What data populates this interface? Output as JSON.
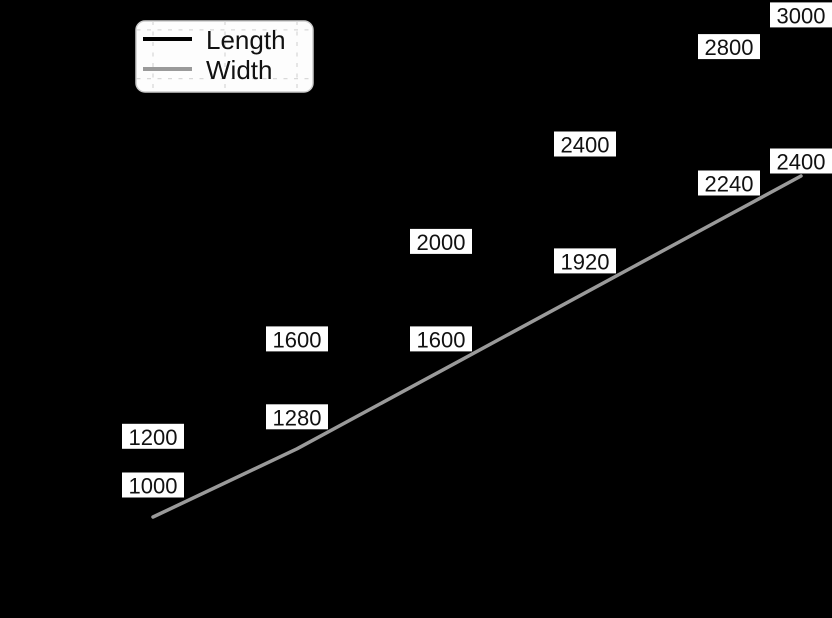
{
  "page": {
    "background": "#000000"
  },
  "chart_data": {
    "type": "line",
    "title": "",
    "xlabel": "",
    "ylabel": "",
    "x_relative": [
      0,
      2,
      4,
      6,
      8,
      9
    ],
    "series": [
      {
        "name": "Length",
        "color": "#000000",
        "values": [
          1200,
          1600,
          2000,
          2400,
          2800,
          3000
        ]
      },
      {
        "name": "Width",
        "color": "#9a9a9a",
        "values": [
          1000,
          1280,
          1600,
          1920,
          2240,
          2400
        ]
      }
    ],
    "data_labels": {
      "shown": true,
      "text_color": "#111111",
      "background": "#ffffff",
      "values": [
        [
          "1200",
          "1600",
          "2000",
          "2400",
          "2800",
          "3000"
        ],
        [
          "1000",
          "1280",
          "1600",
          "1920",
          "2240",
          "2400"
        ]
      ]
    },
    "legend": {
      "position": "top-left",
      "labels": [
        "Length",
        "Width"
      ],
      "background": "#fdfdfd",
      "border_color": "#cccccc"
    },
    "axes": {
      "grid": true,
      "grid_style": "dashed",
      "gridline_color": "#d9d9d9",
      "x_gridline_step": 1,
      "y_gridline_step": 200,
      "y_visible_range": [
        1000,
        3000
      ]
    }
  }
}
